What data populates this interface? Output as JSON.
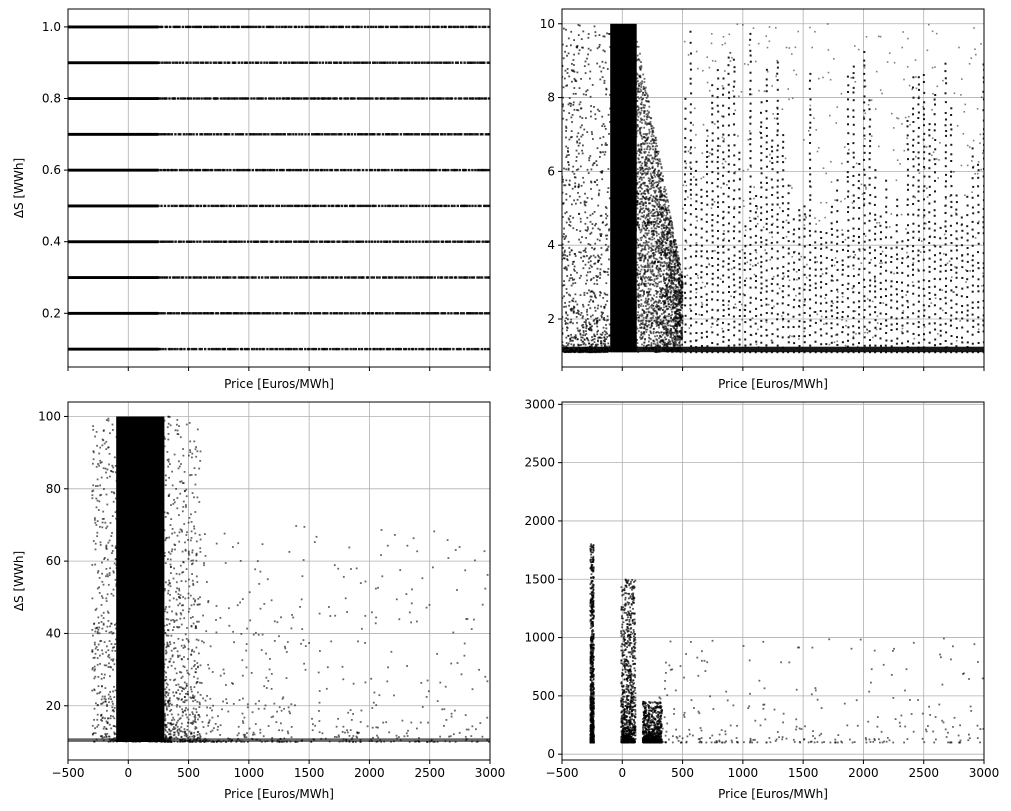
{
  "chart_data": [
    {
      "type": "scatter",
      "panel": "top-left",
      "xlabel": "Price [Euros/MWh]",
      "ylabel": "ΔS [WWh]",
      "xlim": [
        -500,
        3000
      ],
      "ylim": [
        0.05,
        1.05
      ],
      "x_ticks": [
        -500,
        0,
        500,
        1000,
        1500,
        2000,
        2500,
        3000
      ],
      "x_tick_labels_shown": false,
      "y_ticks": [
        0.2,
        0.4,
        0.6,
        0.8,
        1.0
      ],
      "y_tick_labels": [
        "0.2",
        "0.4",
        "0.6",
        "0.8",
        "1.0"
      ],
      "grid": true,
      "marker_color": "#000000",
      "pattern": "horizontal-bands",
      "bands_y": [
        0.1,
        0.2,
        0.3,
        0.4,
        0.5,
        0.6,
        0.7,
        0.8,
        0.9,
        1.0
      ],
      "dense_x_range": [
        -500,
        250
      ]
    },
    {
      "type": "scatter",
      "panel": "top-right",
      "xlabel": "Price [Euros/MWh]",
      "ylabel": "",
      "xlim": [
        -500,
        3000
      ],
      "ylim": [
        0.7,
        10.4
      ],
      "x_ticks": [
        -500,
        0,
        500,
        1000,
        1500,
        2000,
        2500,
        3000
      ],
      "x_tick_labels_shown": false,
      "y_ticks": [
        2,
        4,
        6,
        8,
        10
      ],
      "y_tick_labels": [
        "2",
        "4",
        "6",
        "8",
        "10"
      ],
      "grid": true,
      "marker_color": "#000000",
      "pattern": "dense-core-with-vertical-columns",
      "core_x_range": [
        -100,
        250
      ],
      "y_floor": 1.1,
      "y_ceiling": 10
    },
    {
      "type": "scatter",
      "panel": "bottom-left",
      "xlabel": "Price [Euros/MWh]",
      "ylabel": "ΔS [WWh]",
      "xlim": [
        -500,
        3000
      ],
      "ylim": [
        5,
        104
      ],
      "x_ticks": [
        -500,
        0,
        500,
        1000,
        1500,
        2000,
        2500,
        3000
      ],
      "x_tick_labels": [
        "−500",
        "0",
        "500",
        "1000",
        "1500",
        "2000",
        "2500",
        "3000"
      ],
      "y_ticks": [
        20,
        40,
        60,
        80,
        100
      ],
      "y_tick_labels": [
        "20",
        "40",
        "60",
        "80",
        "100"
      ],
      "grid": true,
      "marker_color": "#000000",
      "pattern": "dense-core-with-sparse-tail",
      "core_x_range": [
        -100,
        300
      ],
      "y_floor": 10,
      "y_ceiling": 100
    },
    {
      "type": "scatter",
      "panel": "bottom-right",
      "xlabel": "Price [Euros/MWh]",
      "ylabel": "",
      "xlim": [
        -500,
        3000
      ],
      "ylim": [
        -50,
        3020
      ],
      "x_ticks": [
        -500,
        0,
        500,
        1000,
        1500,
        2000,
        2500,
        3000
      ],
      "x_tick_labels": [
        "−500",
        "0",
        "500",
        "1000",
        "1500",
        "2000",
        "2500",
        "3000"
      ],
      "y_ticks": [
        0,
        500,
        1000,
        1500,
        2000,
        2500,
        3000
      ],
      "y_tick_labels": [
        "0",
        "500",
        "1000",
        "1500",
        "2000",
        "2500",
        "3000"
      ],
      "grid": true,
      "marker_color": "#000000",
      "pattern": "clusters",
      "clusters": [
        {
          "x": -250,
          "y_range": [
            100,
            1800
          ]
        },
        {
          "x": 50,
          "y_range": [
            100,
            1500
          ]
        },
        {
          "x": 250,
          "y_range": [
            100,
            450
          ]
        }
      ]
    }
  ]
}
